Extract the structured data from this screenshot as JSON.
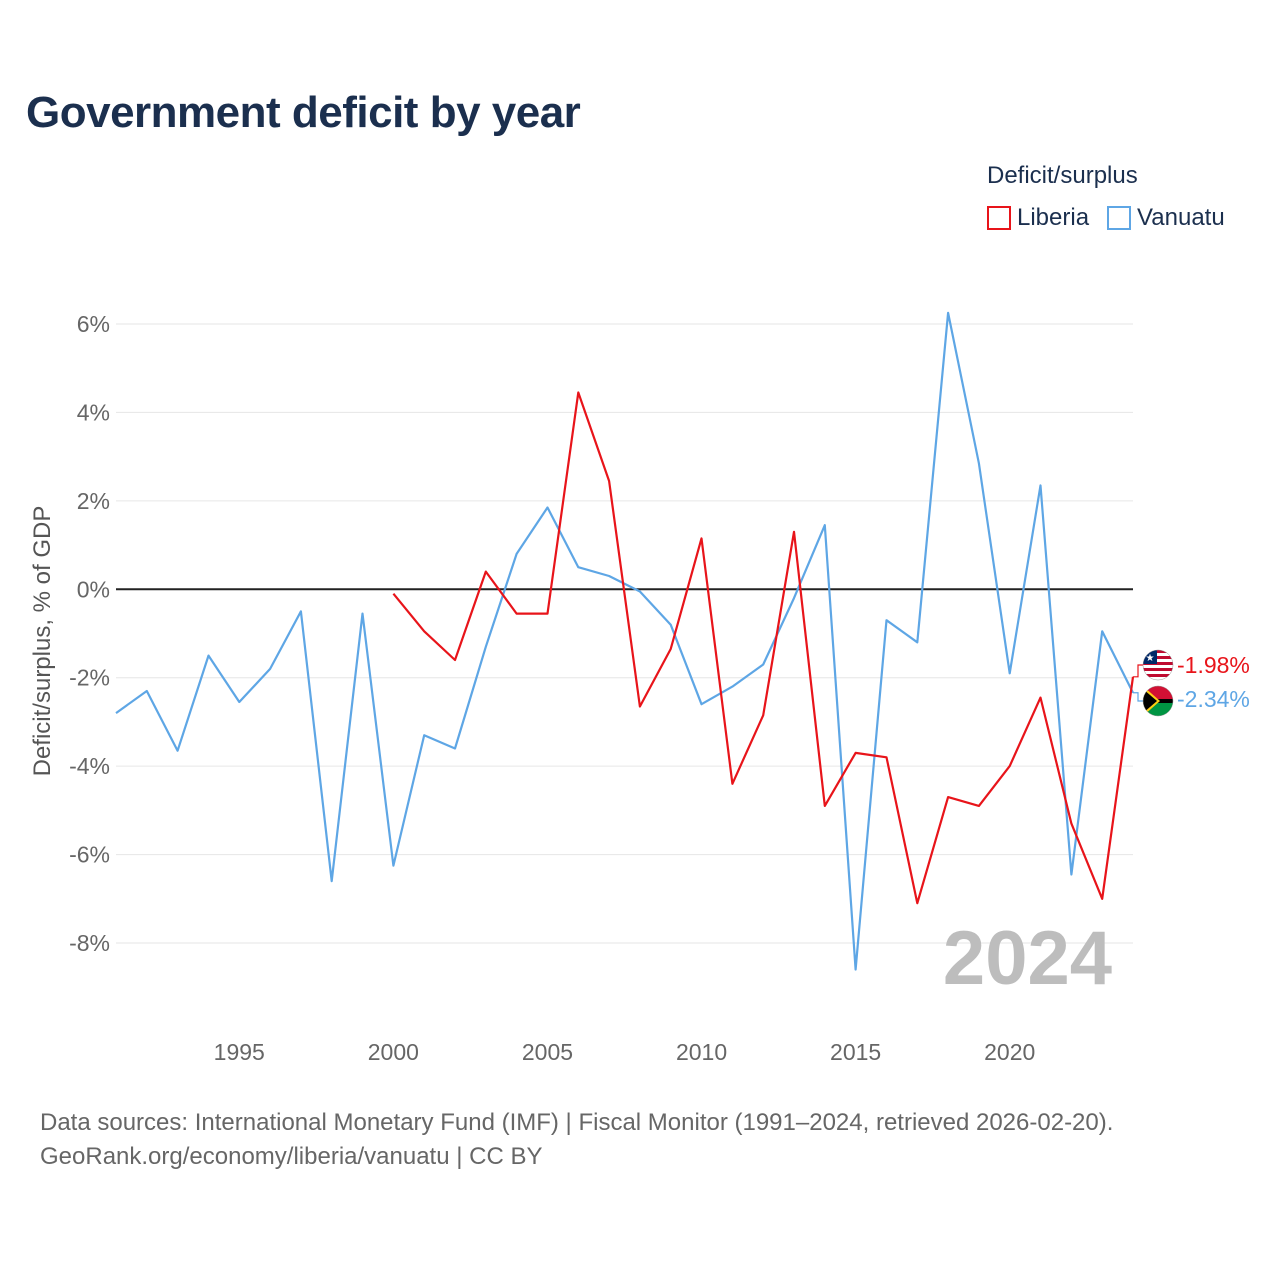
{
  "title": "Government deficit by year",
  "legend": {
    "title": "Deficit/surplus",
    "items": [
      {
        "name": "Liberia",
        "color": "#e8141a"
      },
      {
        "name": "Vanuatu",
        "color": "#5ea6e5"
      }
    ]
  },
  "year_watermark": "2024",
  "footer": {
    "line1": "Data sources: International Monetary Fund (IMF) | Fiscal Monitor (1991–2024, retrieved 2026-02-20).",
    "line2": "GeoRank.org/economy/liberia/vanuatu | CC BY"
  },
  "chart_data": {
    "type": "line",
    "title": "Government deficit by year",
    "xlabel": "",
    "ylabel": "Deficit/surplus, % of GDP",
    "xlim": [
      1991,
      2024
    ],
    "ylim": [
      -9.5,
      7
    ],
    "xticks": [
      1995,
      2000,
      2005,
      2010,
      2015,
      2020
    ],
    "yticks": [
      6,
      4,
      2,
      0,
      -2,
      -4,
      -6,
      -8
    ],
    "ytick_labels": [
      "6%",
      "4%",
      "2%",
      "0%",
      "-2%",
      "-4%",
      "-6%",
      "-8%"
    ],
    "series": [
      {
        "name": "Vanuatu",
        "color": "#5ea6e5",
        "end_label": "-2.34%",
        "flag": "vanuatu",
        "x": [
          1991,
          1992,
          1993,
          1994,
          1995,
          1996,
          1997,
          1998,
          1999,
          2000,
          2001,
          2002,
          2003,
          2004,
          2005,
          2006,
          2007,
          2008,
          2009,
          2010,
          2011,
          2012,
          2013,
          2014,
          2015,
          2016,
          2017,
          2018,
          2019,
          2020,
          2021,
          2022,
          2023,
          2024
        ],
        "values": [
          -2.8,
          -2.3,
          -3.65,
          -1.5,
          -2.55,
          -1.8,
          -0.5,
          -6.6,
          -0.55,
          -6.25,
          -3.3,
          -3.6,
          -1.3,
          0.8,
          1.85,
          0.5,
          0.3,
          -0.05,
          -0.8,
          -2.6,
          -2.2,
          -1.7,
          -0.2,
          1.45,
          -8.6,
          -0.7,
          -1.2,
          6.25,
          2.85,
          -1.9,
          2.35,
          -6.45,
          -0.95,
          -2.34
        ]
      },
      {
        "name": "Liberia",
        "color": "#e8141a",
        "end_label": "-1.98%",
        "flag": "liberia",
        "x": [
          2000,
          2001,
          2002,
          2003,
          2004,
          2005,
          2006,
          2007,
          2008,
          2009,
          2010,
          2011,
          2012,
          2013,
          2014,
          2015,
          2016,
          2017,
          2018,
          2019,
          2020,
          2021,
          2022,
          2023,
          2024
        ],
        "values": [
          -0.1,
          -0.95,
          -1.6,
          0.4,
          -0.55,
          -0.55,
          4.45,
          2.45,
          -2.65,
          -1.35,
          1.15,
          -4.4,
          -2.85,
          1.3,
          -4.9,
          -3.7,
          -3.8,
          -7.1,
          -4.7,
          -4.9,
          -4.0,
          -2.45,
          -5.3,
          -7.0,
          -1.98
        ]
      }
    ]
  }
}
